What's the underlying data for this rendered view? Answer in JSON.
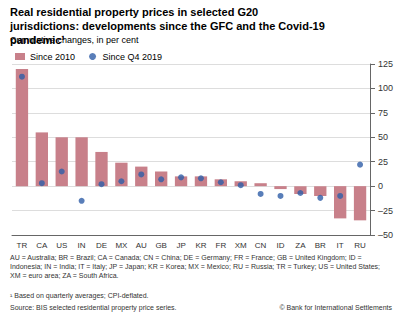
{
  "chart_data": {
    "type": "bar",
    "title": "Real residential property prices in selected G20 jurisdictions: developments since the GFC and the Covid-19 pandemic¹",
    "subtitle": "Cumulative changes, in per cent",
    "categories": [
      "TR",
      "CA",
      "US",
      "IN",
      "DE",
      "MX",
      "AU",
      "GB",
      "JP",
      "KR",
      "FR",
      "XM",
      "CN",
      "ID",
      "ZA",
      "BR",
      "IT",
      "RU"
    ],
    "series": [
      {
        "name": "Since 2010",
        "type": "bar",
        "color": "#c8808a",
        "values": [
          120,
          55,
          50,
          50,
          35,
          24,
          20,
          15,
          10,
          10,
          7,
          5,
          3,
          -3,
          -8,
          -10,
          -33,
          -35
        ]
      },
      {
        "name": "Since Q4 2019",
        "type": "scatter",
        "marker": "circle",
        "color": "#2f5ea8",
        "values": [
          112,
          3,
          15,
          -15,
          2,
          5,
          12,
          7,
          9,
          8,
          4,
          1,
          -8,
          -10,
          -7,
          -12,
          -10,
          22
        ]
      }
    ],
    "ylim": [
      -50,
      125
    ],
    "yticks": [
      {
        "value": -50,
        "label": "–50"
      },
      {
        "value": -25,
        "label": "–25"
      },
      0,
      25,
      50,
      75,
      100,
      125
    ],
    "grid": true,
    "legend": "upper left",
    "footnotes": [
      "AU = Australia; BR = Brazil; CA = Canada; CN = China; DE = Germany; FR = France; GB = United Kingdom; ID = Indonesia; IN = India; IT = Italy; JP = Japan; KR = Korea; MX = Mexico; RU = Russia; TR = Turkey; US = United States; XM = euro area; ZA = South Africa.",
      "¹ Based on quarterly averages; CPI-deflated."
    ],
    "source": "Source: BIS selected residential property price series.",
    "copyright": "© Bank for International Settlements"
  }
}
